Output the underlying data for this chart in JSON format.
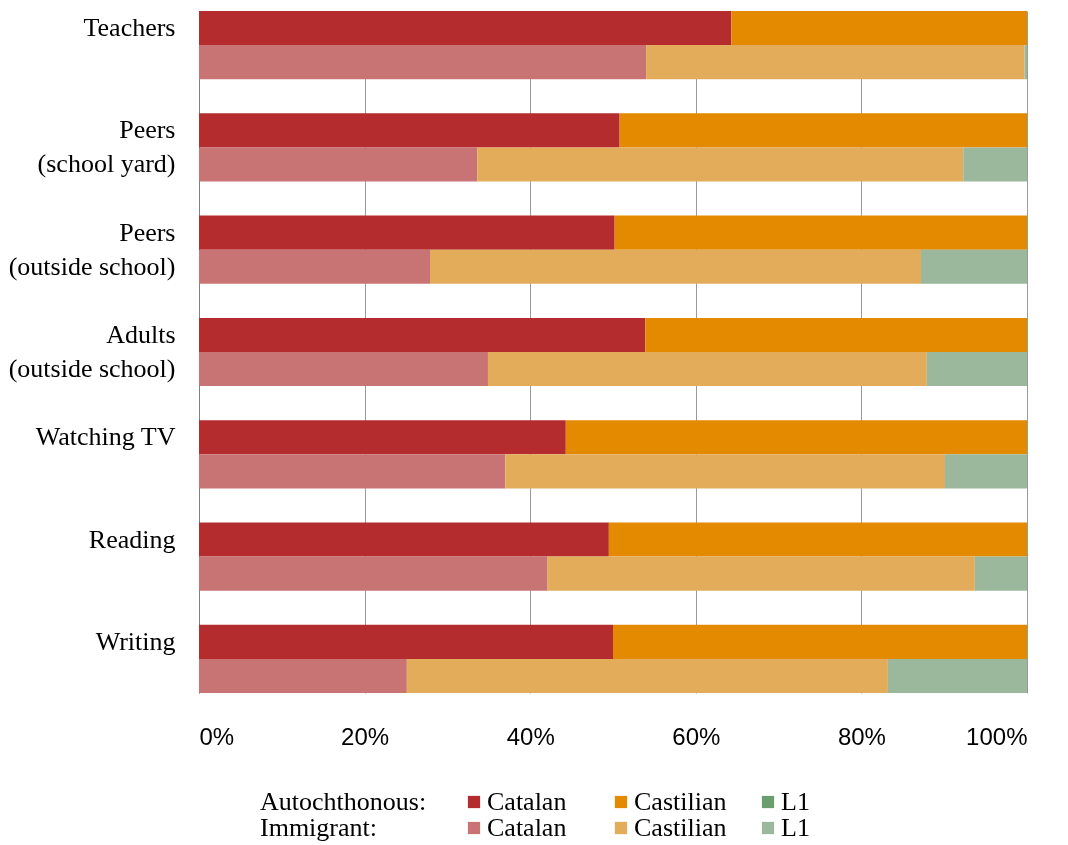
{
  "chart_data": {
    "type": "bar",
    "orientation": "horizontal",
    "stacked": true,
    "grid": "x",
    "legend": "bottom",
    "categories": [
      "Teachers",
      null,
      null,
      "Peers\n(school yard)",
      null,
      null,
      "Peers\n(outside school)",
      null,
      null,
      "Adults\n(outside school)",
      null,
      null,
      "Watching TV",
      null,
      null,
      "Reading",
      null,
      null,
      "Writing",
      null
    ],
    "annotations": [
      "Autochthonous:",
      "Immigrant:"
    ],
    "xlim": [
      0,
      100
    ],
    "xticks": [
      {
        "value": 0,
        "label": "0%"
      },
      {
        "value": 20,
        "label": "20%"
      },
      {
        "value": 40,
        "label": "40%"
      },
      {
        "value": 60,
        "label": "60%"
      },
      {
        "value": 80,
        "label": "80%"
      },
      {
        "value": 100,
        "label": "100%"
      }
    ],
    "series": [
      {
        "name": "Catalan",
        "color": "#b52c2f",
        "values": [
          64.3,
          null,
          null,
          50.8,
          null,
          null,
          50.2,
          null,
          null,
          53.9,
          null,
          null,
          44.3,
          null,
          null,
          49.5,
          null,
          null,
          50.0,
          null
        ]
      },
      {
        "name": "Castilian",
        "color": "#e38a00",
        "values": [
          35.7,
          null,
          null,
          49.2,
          null,
          null,
          49.8,
          null,
          null,
          46.1,
          null,
          null,
          55.7,
          null,
          null,
          50.5,
          null,
          null,
          50.0,
          null
        ]
      },
      {
        "name": "L1",
        "color": "#6a9e6f",
        "values": [
          0,
          null,
          null,
          0,
          null,
          null,
          0,
          null,
          null,
          0,
          null,
          null,
          0,
          null,
          null,
          0,
          null,
          null,
          0,
          null
        ]
      },
      {
        "name": "Catalan",
        "color": "#c87474",
        "values": [
          null,
          54.0,
          null,
          null,
          33.6,
          null,
          null,
          27.9,
          null,
          null,
          34.9,
          null,
          null,
          37.0,
          null,
          null,
          42.1,
          null,
          null,
          25.1
        ]
      },
      {
        "name": "Castilian",
        "color": "#e3ac5b",
        "values": [
          null,
          45.7,
          null,
          null,
          58.7,
          null,
          null,
          59.3,
          null,
          null,
          53.0,
          null,
          null,
          53.1,
          null,
          null,
          51.6,
          null,
          null,
          58.1
        ]
      },
      {
        "name": "L1",
        "color": "#9bb89d",
        "values": [
          null,
          0.3,
          null,
          null,
          7.7,
          null,
          null,
          12.8,
          null,
          null,
          12.1,
          null,
          null,
          9.9,
          null,
          null,
          6.3,
          null,
          null,
          16.8
        ]
      }
    ]
  }
}
